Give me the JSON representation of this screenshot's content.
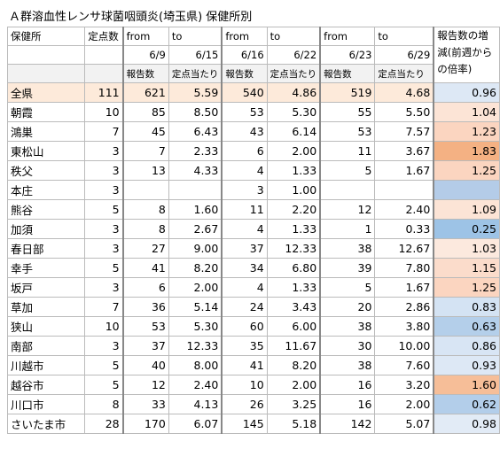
{
  "title": "Ａ群溶血性レンサ球菌咽頭炎(埼玉県) 保健所別",
  "table": {
    "header": [
      [
        "保健所",
        "定点数",
        "from",
        "to",
        "from",
        "to",
        "from",
        "to",
        "報告数の増減(前週からの倍率)"
      ],
      [
        null,
        null,
        "6/9",
        "6/15",
        "6/16",
        "6/22",
        "6/23",
        "6/29"
      ],
      [
        null,
        null,
        "報告数",
        "定点当たり",
        "報告数",
        "定点当たり",
        "報告数",
        "定点当たり"
      ]
    ],
    "rows": [
      [
        "全県",
        "111",
        "621",
        "5.59",
        "540",
        "4.86",
        "519",
        "4.68",
        "0.96"
      ],
      [
        "朝霞",
        "10",
        "85",
        "8.50",
        "53",
        "5.30",
        "55",
        "5.50",
        "1.04"
      ],
      [
        "鴻巣",
        "7",
        "45",
        "6.43",
        "43",
        "6.14",
        "53",
        "7.57",
        "1.23"
      ],
      [
        "東松山",
        "3",
        "7",
        "2.33",
        "6",
        "2.00",
        "11",
        "3.67",
        "1.83"
      ],
      [
        "秩父",
        "3",
        "13",
        "4.33",
        "4",
        "1.33",
        "5",
        "1.67",
        "1.25"
      ],
      [
        "本庄",
        "3",
        null,
        null,
        "3",
        "1.00",
        null,
        null,
        null
      ],
      [
        "熊谷",
        "5",
        "8",
        "1.60",
        "11",
        "2.20",
        "12",
        "2.40",
        "1.09"
      ],
      [
        "加須",
        "3",
        "8",
        "2.67",
        "4",
        "1.33",
        "1",
        "0.33",
        "0.25"
      ],
      [
        "春日部",
        "3",
        "27",
        "9.00",
        "37",
        "12.33",
        "38",
        "12.67",
        "1.03"
      ],
      [
        "幸手",
        "5",
        "41",
        "8.20",
        "34",
        "6.80",
        "39",
        "7.80",
        "1.15"
      ],
      [
        "坂戸",
        "3",
        "6",
        "2.00",
        "4",
        "1.33",
        "5",
        "1.67",
        "1.25"
      ],
      [
        "草加",
        "7",
        "36",
        "5.14",
        "24",
        "3.43",
        "20",
        "2.86",
        "0.83"
      ],
      [
        "狭山",
        "10",
        "53",
        "5.30",
        "60",
        "6.00",
        "38",
        "3.80",
        "0.63"
      ],
      [
        "南部",
        "3",
        "37",
        "12.33",
        "35",
        "11.67",
        "30",
        "10.00",
        "0.86"
      ],
      [
        "川越市",
        "5",
        "40",
        "8.00",
        "41",
        "8.20",
        "38",
        "7.60",
        "0.93"
      ],
      [
        "越谷市",
        "5",
        "12",
        "2.40",
        "10",
        "2.00",
        "16",
        "3.20",
        "1.60"
      ],
      [
        "川口市",
        "8",
        "33",
        "4.13",
        "26",
        "3.25",
        "16",
        "2.00",
        "0.62"
      ],
      [
        "さいたま市",
        "28",
        "170",
        "6.07",
        "145",
        "5.18",
        "142",
        "5.07",
        "0.98"
      ]
    ],
    "ratio_colors": [
      "#dde8f5",
      "#fce4d6",
      "#fbd5c0",
      "#f4b183",
      "#fbd5c0",
      "#b4cce8",
      "#fce4d6",
      "#9dc3e6",
      "#fce9de",
      "#fbdccb",
      "#fbd5c0",
      "#d4e3f3",
      "#b4cfea",
      "#d8e5f4",
      "#dde8f5",
      "#f6be98",
      "#b3ceea",
      "#e2ebf6"
    ],
    "highlight_row_color": "#fdeada"
  }
}
